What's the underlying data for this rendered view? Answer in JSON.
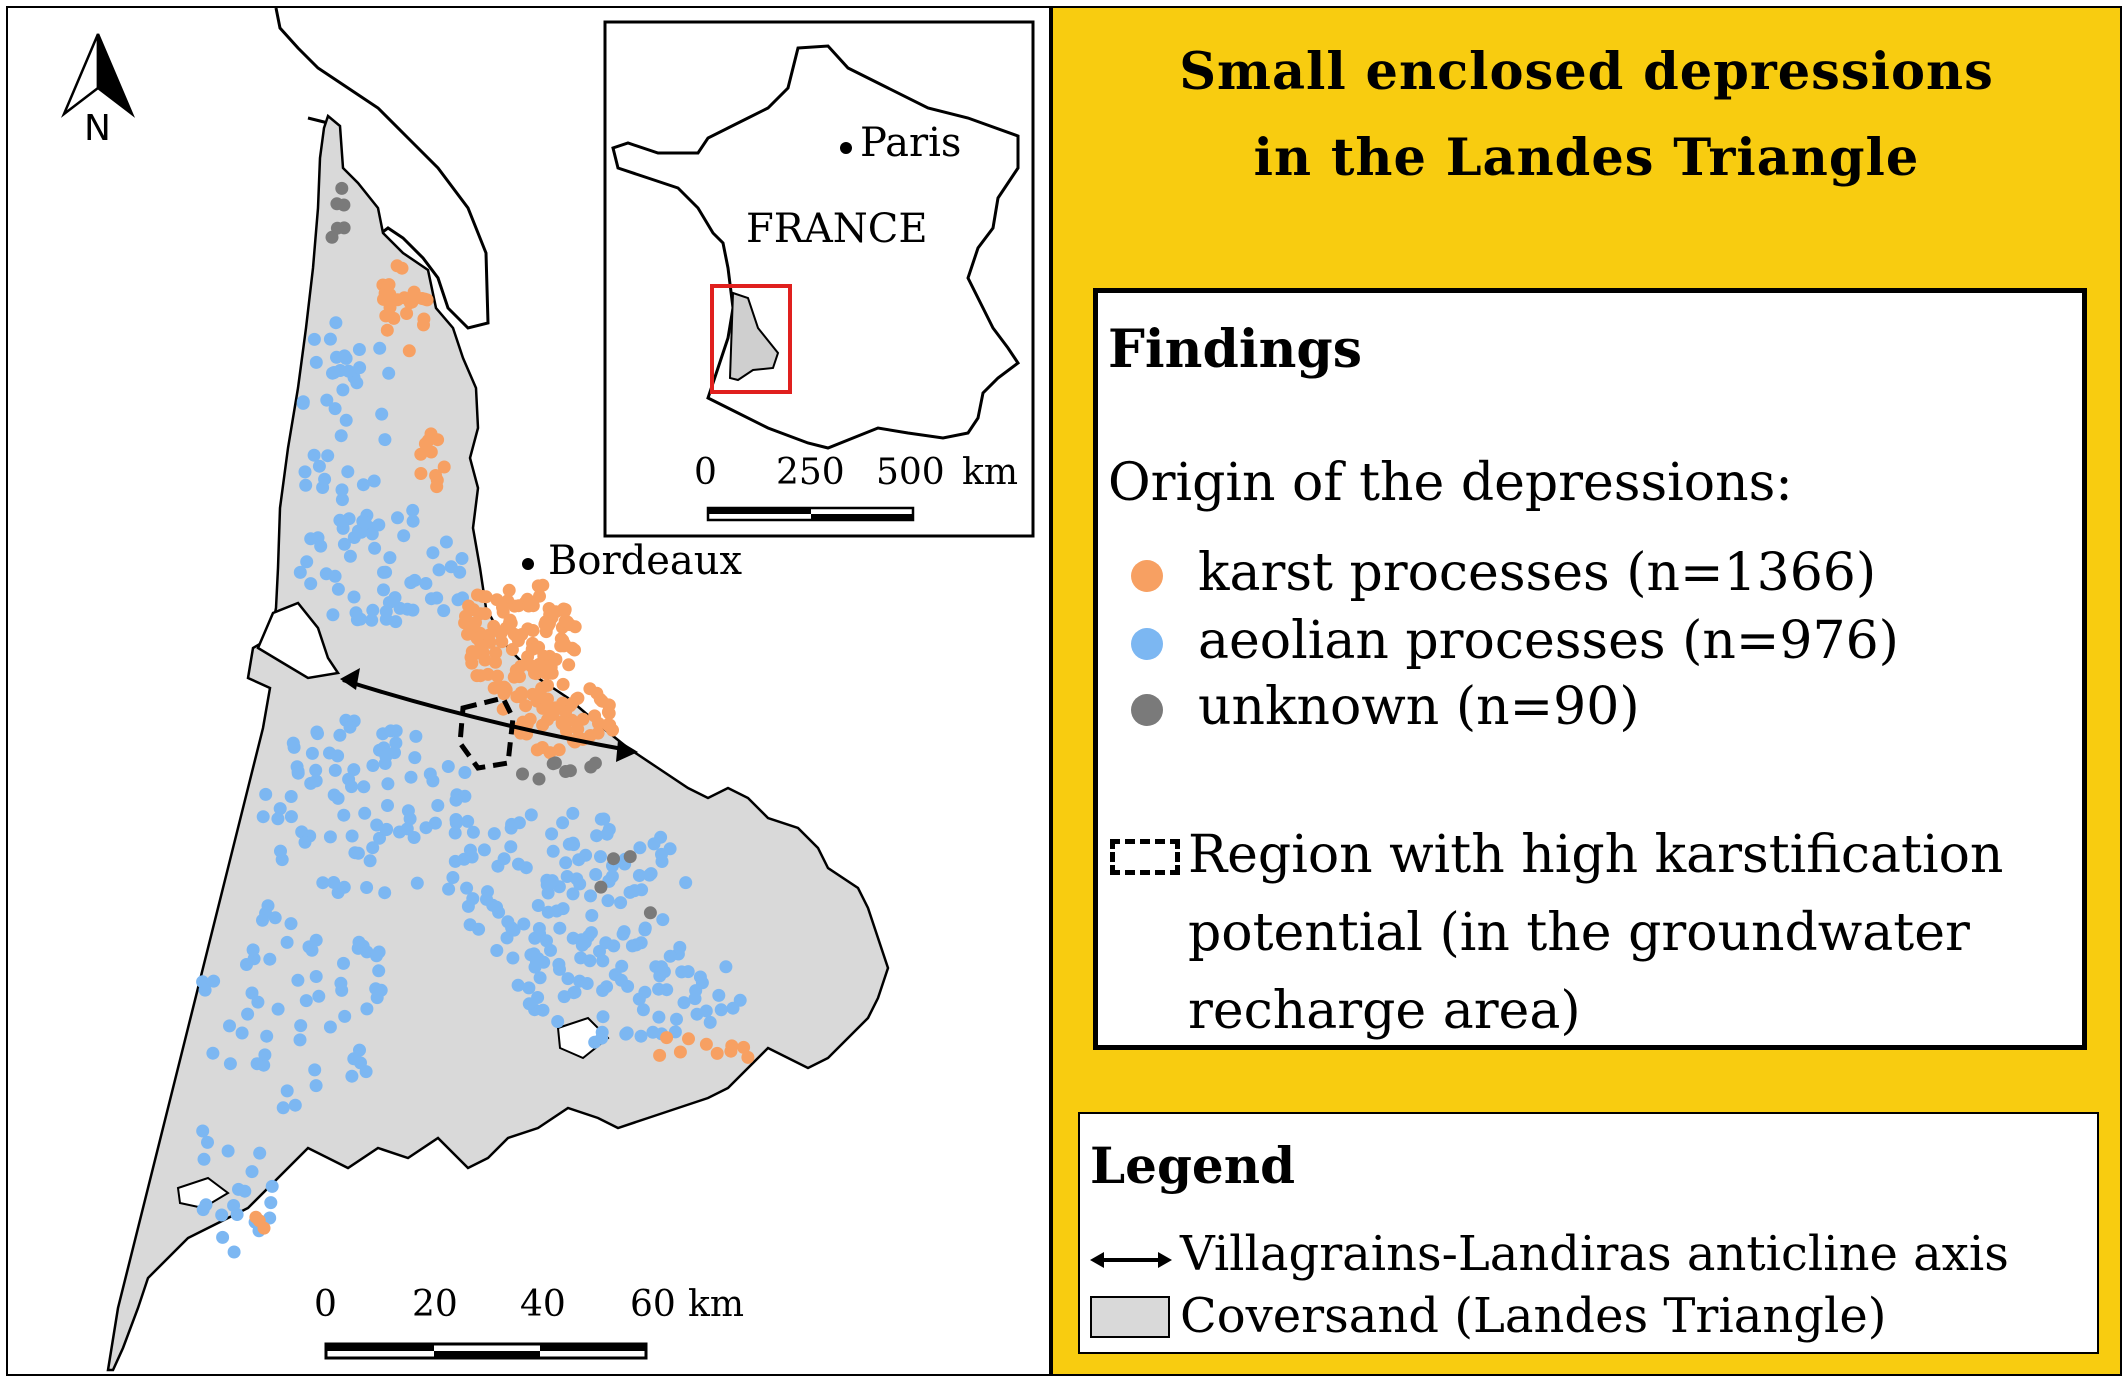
{
  "title": {
    "line1": "Small enclosed depressions",
    "line2": "in the Landes Triangle"
  },
  "findings": {
    "heading": "Findings",
    "subtitle": "Origin of the depressions:",
    "items": [
      {
        "label": "karst processes (n=1366)",
        "color": "#f7a062"
      },
      {
        "label": "aeolian processes (n=976)",
        "color": "#7cb7f2"
      },
      {
        "label": "unknown (n=90)",
        "color": "#7a7a7a"
      }
    ],
    "region": {
      "line1": "Region with high karstification",
      "line2": "potential (in the groundwater",
      "line3": "recharge area)"
    }
  },
  "legend": {
    "heading": "Legend",
    "items": [
      {
        "label": "Villagrains-Landiras anticline axis",
        "icon": "double-arrow-icon"
      },
      {
        "label": "Coversand (Landes Triangle)",
        "icon": "grey-swatch-icon",
        "color": "#d9d9d9"
      }
    ]
  },
  "map": {
    "north_label": "N",
    "city_label": "Bordeaux",
    "scale_ticks": [
      "0",
      "20",
      "40",
      "60"
    ],
    "scale_unit": "km",
    "coversand_color": "#d9d9d9"
  },
  "inset": {
    "country_label": "FRANCE",
    "city_label": "Paris",
    "scale_ticks": [
      "0",
      "250",
      "500"
    ],
    "scale_unit": "km",
    "frame_color": "#e0201e"
  }
}
